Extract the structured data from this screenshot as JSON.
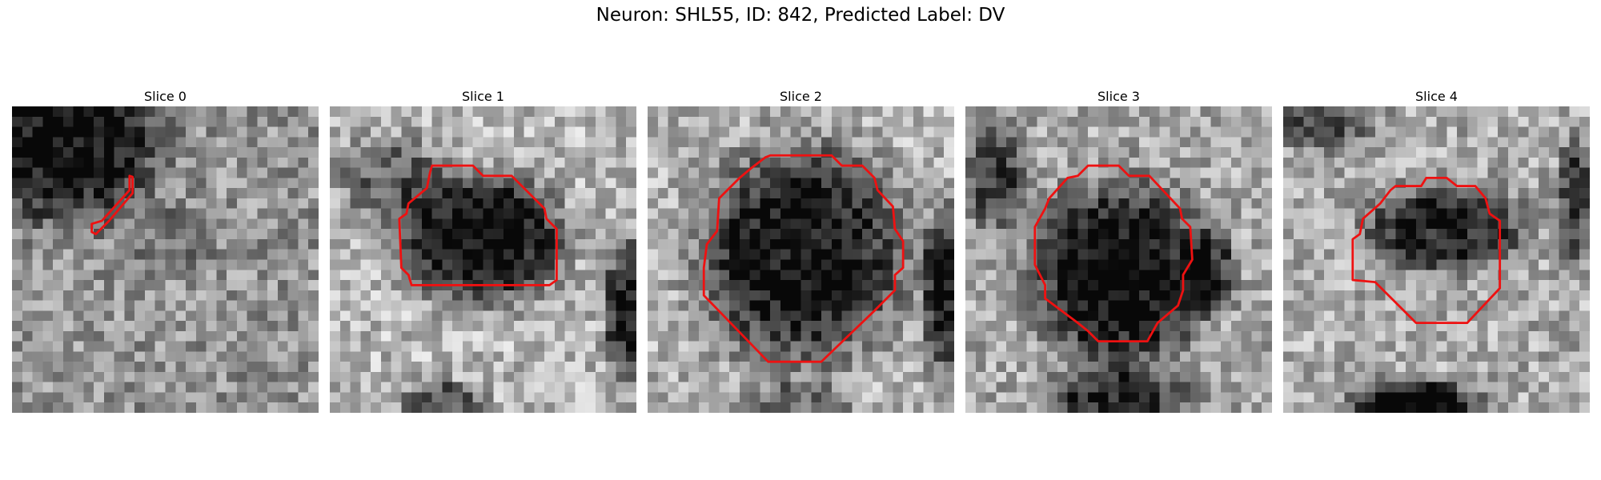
{
  "figure": {
    "title": "Neuron: SHL55, ID: 842, Predicted Label: DV"
  },
  "colors": {
    "contour": "#ee1111",
    "background": "#ffffff"
  },
  "grid_size": 30,
  "panels": [
    {
      "title": "Slice 0",
      "seed": 11,
      "blobs": [
        {
          "cx": 5,
          "cy": 3,
          "rx": 9,
          "ry": 8,
          "d": 0.55
        },
        {
          "cx": 16,
          "cy": 13,
          "rx": 4,
          "ry": 3,
          "d": 0.15
        }
      ],
      "base": 0.58,
      "contour": [
        [
          11.5,
          6.8
        ],
        [
          11.5,
          8.2
        ],
        [
          8.8,
          11.2
        ],
        [
          7.8,
          11.5
        ],
        [
          7.8,
          12.3
        ],
        [
          8.2,
          12.5
        ],
        [
          9.5,
          11.2
        ],
        [
          11.8,
          8.5
        ],
        [
          11.8,
          6.9
        ]
      ]
    },
    {
      "title": "Slice 1",
      "seed": 23,
      "blobs": [
        {
          "cx": 15,
          "cy": 13,
          "rx": 7.5,
          "ry": 6,
          "d": 0.7
        },
        {
          "cx": 6,
          "cy": 7,
          "rx": 5,
          "ry": 4,
          "d": 0.35
        },
        {
          "cx": 29,
          "cy": 20,
          "rx": 2,
          "ry": 7,
          "d": 0.6
        },
        {
          "cx": 11,
          "cy": 29,
          "rx": 4,
          "ry": 2,
          "d": 0.45
        }
      ],
      "base": 0.72,
      "contour": [
        [
          10.0,
          5.8
        ],
        [
          14.0,
          5.8
        ],
        [
          15.0,
          6.8
        ],
        [
          17.8,
          6.8
        ],
        [
          21.0,
          10.0
        ],
        [
          21.2,
          11.0
        ],
        [
          22.2,
          12.0
        ],
        [
          22.2,
          17.0
        ],
        [
          21.5,
          17.5
        ],
        [
          8.0,
          17.5
        ],
        [
          7.7,
          16.5
        ],
        [
          7.0,
          15.8
        ],
        [
          6.8,
          11.0
        ],
        [
          7.5,
          10.5
        ],
        [
          7.7,
          9.5
        ],
        [
          9.5,
          8.0
        ],
        [
          9.8,
          6.5
        ],
        [
          10.0,
          5.8
        ]
      ]
    },
    {
      "title": "Slice 2",
      "seed": 37,
      "blobs": [
        {
          "cx": 15,
          "cy": 14.5,
          "rx": 9.5,
          "ry": 10,
          "d": 0.65
        },
        {
          "cx": 29,
          "cy": 18,
          "rx": 2,
          "ry": 8,
          "d": 0.6
        },
        {
          "cx": 15,
          "cy": 29,
          "rx": 5,
          "ry": 2,
          "d": 0.3
        }
      ],
      "base": 0.7,
      "contour": [
        [
          12.0,
          4.8
        ],
        [
          18.0,
          4.8
        ],
        [
          19.0,
          5.8
        ],
        [
          21.0,
          5.8
        ],
        [
          22.2,
          7.0
        ],
        [
          22.5,
          8.2
        ],
        [
          24.0,
          9.8
        ],
        [
          24.2,
          12.0
        ],
        [
          25.0,
          13.2
        ],
        [
          25.0,
          15.8
        ],
        [
          24.2,
          16.5
        ],
        [
          24.2,
          18.0
        ],
        [
          22.2,
          20.0
        ],
        [
          17.0,
          25.0
        ],
        [
          11.8,
          25.0
        ],
        [
          5.5,
          18.5
        ],
        [
          5.5,
          15.8
        ],
        [
          5.8,
          13.5
        ],
        [
          6.8,
          12.2
        ],
        [
          7.0,
          9.0
        ],
        [
          9.0,
          7.0
        ],
        [
          10.2,
          6.0
        ],
        [
          11.5,
          5.0
        ]
      ]
    },
    {
      "title": "Slice 3",
      "seed": 53,
      "blobs": [
        {
          "cx": 15,
          "cy": 16.5,
          "rx": 8,
          "ry": 8.5,
          "d": 0.65
        },
        {
          "cx": 3,
          "cy": 7,
          "rx": 3,
          "ry": 5,
          "d": 0.4
        },
        {
          "cx": 15,
          "cy": 29,
          "rx": 7,
          "ry": 3,
          "d": 0.5
        },
        {
          "cx": 24,
          "cy": 16,
          "rx": 2.5,
          "ry": 4,
          "d": 0.4
        }
      ],
      "base": 0.66,
      "contour": [
        [
          12.0,
          5.8
        ],
        [
          15.0,
          5.8
        ],
        [
          16.0,
          6.8
        ],
        [
          18.0,
          6.8
        ],
        [
          21.0,
          10.0
        ],
        [
          21.2,
          11.0
        ],
        [
          22.0,
          11.8
        ],
        [
          22.2,
          15.0
        ],
        [
          21.3,
          16.5
        ],
        [
          21.3,
          18.0
        ],
        [
          20.8,
          19.5
        ],
        [
          18.8,
          21.2
        ],
        [
          17.8,
          23.0
        ],
        [
          13.0,
          23.0
        ],
        [
          12.0,
          22.0
        ],
        [
          11.0,
          21.2
        ],
        [
          7.8,
          18.8
        ],
        [
          7.8,
          17.5
        ],
        [
          6.8,
          15.5
        ],
        [
          6.8,
          11.8
        ],
        [
          7.8,
          10.0
        ],
        [
          8.2,
          9.0
        ],
        [
          10.0,
          7.0
        ],
        [
          11.0,
          6.8
        ]
      ]
    },
    {
      "title": "Slice 4",
      "seed": 71,
      "blobs": [
        {
          "cx": 16,
          "cy": 12,
          "rx": 7.5,
          "ry": 4,
          "d": 0.55
        },
        {
          "cx": 4,
          "cy": 1,
          "rx": 5,
          "ry": 3,
          "d": 0.35
        },
        {
          "cx": 13,
          "cy": 29.5,
          "rx": 6,
          "ry": 2.5,
          "d": 0.75
        },
        {
          "cx": 28.5,
          "cy": 9,
          "rx": 1.5,
          "ry": 6,
          "d": 0.45
        }
      ],
      "base": 0.67,
      "contour": [
        [
          11.0,
          7.8
        ],
        [
          13.5,
          7.8
        ],
        [
          14.0,
          7.0
        ],
        [
          16.0,
          7.0
        ],
        [
          17.0,
          7.8
        ],
        [
          18.8,
          7.8
        ],
        [
          19.8,
          9.0
        ],
        [
          20.2,
          10.5
        ],
        [
          21.2,
          11.2
        ],
        [
          21.2,
          17.8
        ],
        [
          18.0,
          21.2
        ],
        [
          13.0,
          21.2
        ],
        [
          9.0,
          17.2
        ],
        [
          6.8,
          17.0
        ],
        [
          6.8,
          13.0
        ],
        [
          7.5,
          12.5
        ],
        [
          7.8,
          11.0
        ],
        [
          9.5,
          9.5
        ],
        [
          10.5,
          8.2
        ]
      ]
    }
  ]
}
